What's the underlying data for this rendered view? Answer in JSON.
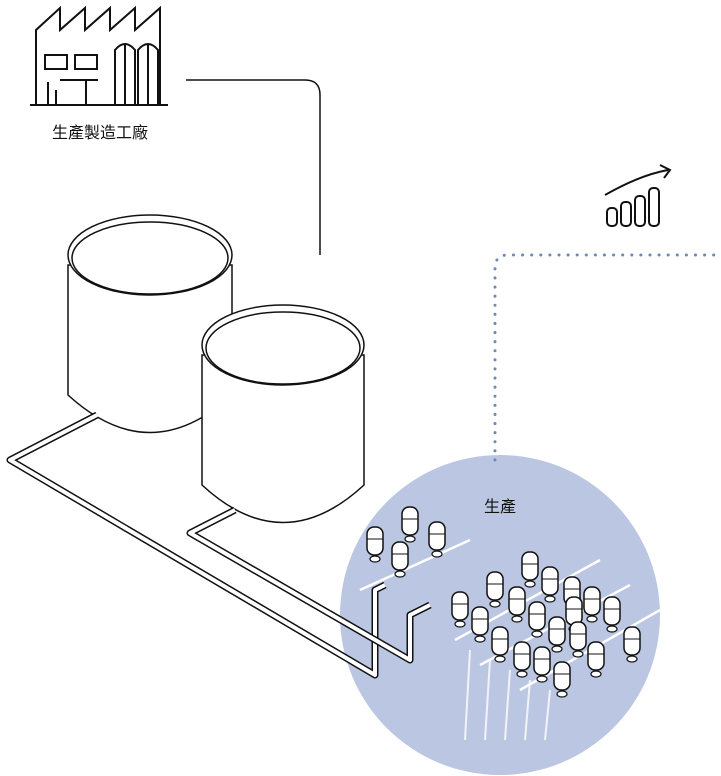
{
  "nodes": [
    {
      "label": "生產製造工廠"
    },
    {
      "label": "生產"
    }
  ]
}
